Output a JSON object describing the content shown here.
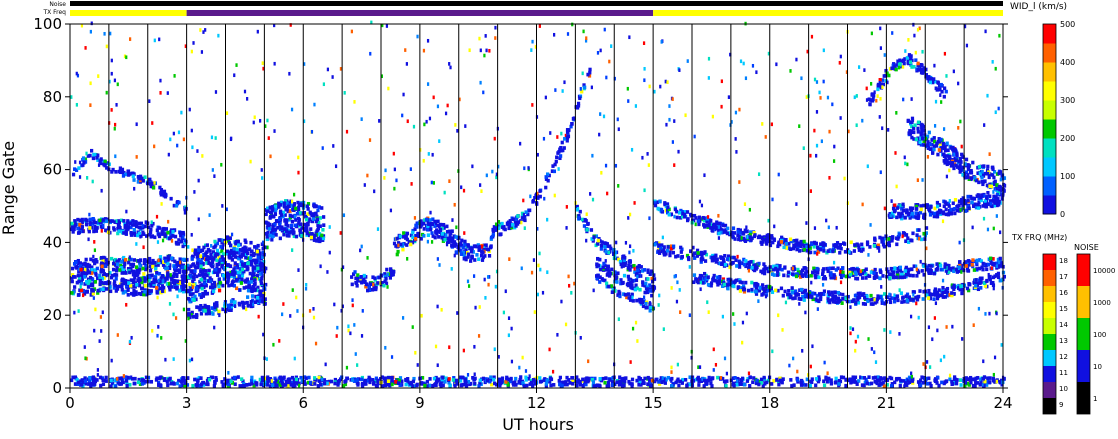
{
  "chart_data": {
    "type": "heatmap",
    "title": "",
    "xlabel": "UT hours",
    "ylabel": "Range Gate",
    "xlim": [
      0,
      24
    ],
    "ylim": [
      0,
      100
    ],
    "x_ticks": [
      "0",
      "3",
      "6",
      "9",
      "12",
      "15",
      "18",
      "21",
      "24"
    ],
    "y_ticks": [
      "0",
      "20",
      "40",
      "60",
      "80",
      "100"
    ],
    "vertical_lines_hours": [
      1,
      2,
      3,
      4,
      5,
      6,
      7,
      8,
      9,
      10,
      11,
      12,
      13,
      14,
      15,
      16,
      17,
      18,
      19,
      20,
      21,
      22,
      23
    ],
    "top_bars": {
      "noise_label": "Noise",
      "txfreq_label": "TX Freq",
      "noise_color": "#000000",
      "txfreq_segments": [
        {
          "start": 0,
          "end": 3,
          "color": "#ffff00"
        },
        {
          "start": 3,
          "end": 15,
          "color": "#5a1a8c"
        },
        {
          "start": 15,
          "end": 24,
          "color": "#ffff00"
        }
      ]
    },
    "colorbar_width": {
      "label": "WID_l (km/s)",
      "ticks": [
        "0",
        "100",
        "200",
        "300",
        "400",
        "500"
      ],
      "range": [
        0,
        500
      ],
      "colors": [
        "#1010e0",
        "#0060ff",
        "#00c8ff",
        "#00e0c0",
        "#00c800",
        "#c8ff00",
        "#ffff00",
        "#ffc000",
        "#ff6000",
        "#ff0000"
      ]
    },
    "colorbar_txfreq": {
      "label": "TX FRQ (MHz)",
      "ticks": [
        "9",
        "10",
        "11",
        "12",
        "13",
        "14",
        "15",
        "16",
        "17",
        "18"
      ],
      "colors": [
        "#000000",
        "#5a1a8c",
        "#1010e0",
        "#00c8ff",
        "#00c800",
        "#c8ff00",
        "#ffff00",
        "#ffc000",
        "#ff6000",
        "#ff0000"
      ]
    },
    "colorbar_noise": {
      "label": "NOISE",
      "ticks": [
        "1",
        "10",
        "100",
        "1000",
        "10000"
      ],
      "colors": [
        "#000000",
        "#1010e0",
        "#00c800",
        "#ffc000",
        "#ff0000"
      ]
    },
    "echo_bands": [
      {
        "x": [
          0,
          0.5,
          1,
          1.5,
          2,
          2.5,
          3
        ],
        "y": [
          58,
          64,
          60,
          58,
          56,
          52,
          48
        ],
        "w": 2
      },
      {
        "x": [
          0,
          0.5,
          1,
          1.5,
          2,
          2.5,
          3
        ],
        "y": [
          30,
          30,
          31,
          30,
          30,
          31,
          30
        ],
        "w": 10
      },
      {
        "x": [
          0,
          1,
          2,
          3
        ],
        "y": [
          44,
          44,
          43,
          40
        ],
        "w": 4
      },
      {
        "x": [
          3,
          3.5,
          4,
          4.5,
          5
        ],
        "y": [
          30,
          32,
          34,
          33,
          32
        ],
        "w": 14
      },
      {
        "x": [
          3,
          4,
          5
        ],
        "y": [
          20,
          22,
          24
        ],
        "w": 3
      },
      {
        "x": [
          5,
          5.5,
          6,
          6.5
        ],
        "y": [
          44,
          46,
          46,
          44
        ],
        "w": 10
      },
      {
        "x": [
          7.2,
          7.6,
          8,
          8.3
        ],
        "y": [
          30,
          28,
          29,
          32
        ],
        "w": 4
      },
      {
        "x": [
          8.3,
          8.8,
          9.2,
          9.6,
          10,
          10.4,
          10.8
        ],
        "y": [
          38,
          42,
          44,
          42,
          38,
          36,
          38
        ],
        "w": 5
      },
      {
        "x": [
          10.8,
          11.2,
          11.6,
          12,
          12.4,
          12.8
        ],
        "y": [
          42,
          44,
          46,
          52,
          60,
          70
        ],
        "w": 3
      },
      {
        "x": [
          12.8,
          13.1,
          13.4
        ],
        "y": [
          70,
          80,
          88
        ],
        "w": 2
      },
      {
        "x": [
          13,
          13.5,
          14,
          14.5,
          15
        ],
        "y": [
          48,
          40,
          36,
          32,
          30
        ],
        "w": 3
      },
      {
        "x": [
          13.5,
          14,
          14.5,
          15
        ],
        "y": [
          34,
          30,
          28,
          26
        ],
        "w": 3
      },
      {
        "x": [
          13.5,
          14,
          14.5,
          15
        ],
        "y": [
          30,
          26,
          24,
          21
        ],
        "w": 2
      },
      {
        "x": [
          15,
          16,
          17,
          18,
          19,
          20,
          21,
          22
        ],
        "y": [
          50,
          46,
          42,
          40,
          38,
          38,
          40,
          42
        ],
        "w": 3
      },
      {
        "x": [
          15,
          16,
          17,
          18,
          19,
          20,
          21,
          22,
          23,
          24
        ],
        "y": [
          38,
          36,
          34,
          32,
          31,
          31,
          31,
          32,
          33,
          34
        ],
        "w": 3
      },
      {
        "x": [
          16,
          17,
          18,
          19,
          20,
          21,
          22,
          23,
          24
        ],
        "y": [
          30,
          28,
          26,
          25,
          24,
          24,
          25,
          27,
          30
        ],
        "w": 3
      },
      {
        "x": [
          20.5,
          21,
          21.5,
          22,
          22.5
        ],
        "y": [
          78,
          86,
          90,
          86,
          80
        ],
        "w": 3
      },
      {
        "x": [
          21.5,
          22,
          22.5,
          23,
          23.5,
          24
        ],
        "y": [
          72,
          68,
          64,
          60,
          58,
          56
        ],
        "w": 6
      },
      {
        "x": [
          21,
          22,
          23,
          24
        ],
        "y": [
          48,
          48,
          50,
          52
        ],
        "w": 4
      },
      {
        "x": [
          0,
          4,
          8,
          12,
          16,
          20,
          24
        ],
        "y": [
          1,
          1,
          1,
          1,
          1,
          1,
          1
        ],
        "w": 3
      }
    ]
  }
}
